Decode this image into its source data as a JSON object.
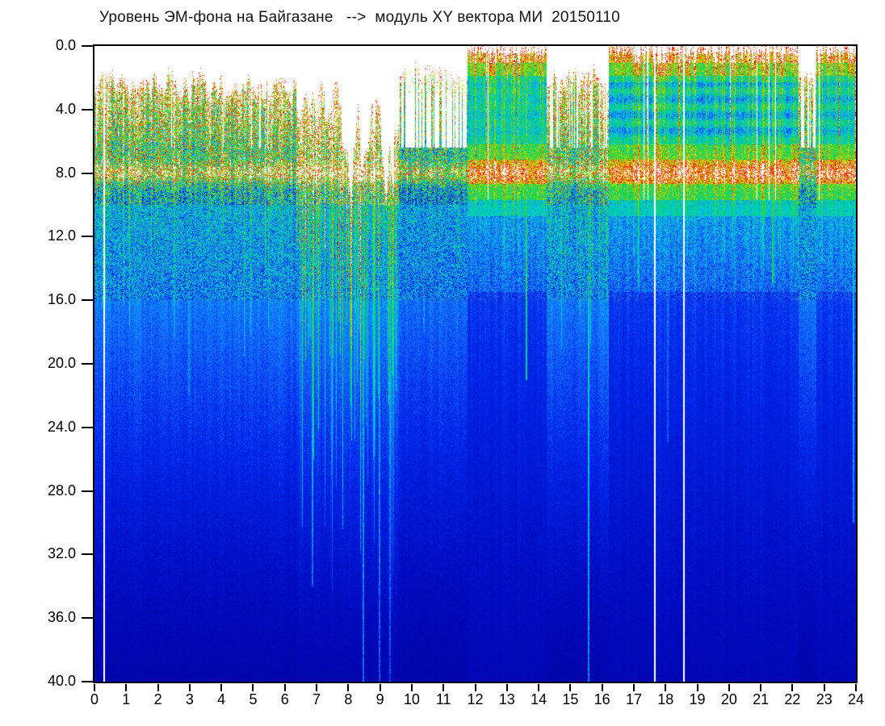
{
  "title": {
    "text": "Уровень ЭМ-фона на Байгазане   -->  модуль XY вектора МИ  20150110"
  },
  "chart_data": {
    "type": "heatmap",
    "title": "Уровень ЭМ-фона на Байгазане --> модуль XY вектора МИ 20150110",
    "date_label": "20150110",
    "x_axis": {
      "range": [
        0,
        24
      ],
      "unit": "hour",
      "tick_labels": [
        "0",
        "1",
        "2",
        "3",
        "4",
        "5",
        "6",
        "7",
        "8",
        "9",
        "10",
        "11",
        "12",
        "13",
        "14",
        "15",
        "16",
        "17",
        "18",
        "19",
        "20",
        "21",
        "22",
        "23",
        "24"
      ]
    },
    "y_axis": {
      "range": [
        0,
        40
      ],
      "inverted": true,
      "tick_labels": [
        "0.0",
        "4.0",
        "8.0",
        "12.0",
        "16.0",
        "20.0",
        "24.0",
        "28.0",
        "32.0",
        "36.0",
        "40.0"
      ]
    },
    "grid": false,
    "legend": null,
    "background_color": "#ffffff",
    "colormap": {
      "name": "jet-saturating-to-white",
      "stops": [
        [
          0.0,
          "#00008C"
        ],
        [
          0.18,
          "#000ABE"
        ],
        [
          0.3,
          "#0028EB"
        ],
        [
          0.4,
          "#146EFF"
        ],
        [
          0.5,
          "#00C8E6"
        ],
        [
          0.6,
          "#00D796"
        ],
        [
          0.7,
          "#28CD28"
        ],
        [
          0.8,
          "#B4DC00"
        ],
        [
          0.88,
          "#F0C800"
        ],
        [
          0.93,
          "#FF3C00"
        ],
        [
          1.0,
          "#EB0000"
        ],
        [
          1.02,
          "#FFFFFF"
        ]
      ]
    },
    "schumann_band": {
      "center_hz": 8.0,
      "sigma": 0.5,
      "strength": 0.3
    },
    "segments": [
      {
        "from": 0.0,
        "to": 6.35,
        "mode": "speckle",
        "act": 1.05,
        "clip": 1.7,
        "sparse": 0.14,
        "streak": 20,
        "band8": 0.95,
        "banded": 0
      },
      {
        "from": 6.35,
        "to": 9.6,
        "mode": "storm",
        "act": 1.5,
        "clip": 3.0,
        "sparse": 0.04,
        "streak": 40,
        "band8": 0.8,
        "banded": 0
      },
      {
        "from": 9.6,
        "to": 11.75,
        "mode": "sparse",
        "act": 0.85,
        "clip": 1.1,
        "sparse": 0.62,
        "streak": 12,
        "band8": 1.0,
        "banded": 0
      },
      {
        "from": 11.75,
        "to": 14.25,
        "mode": "block",
        "act": 1.0,
        "clip": 0.8,
        "sparse": 0.0,
        "streak": 14,
        "band8": 0.55,
        "banded": 0.35
      },
      {
        "from": 14.25,
        "to": 16.2,
        "mode": "speckle",
        "act": 1.15,
        "clip": 1.3,
        "sparse": 0.34,
        "streak": 22,
        "band8": 0.9,
        "banded": 0
      },
      {
        "from": 16.2,
        "to": 22.2,
        "mode": "block",
        "act": 1.0,
        "clip": 0.5,
        "sparse": 0.0,
        "streak": 16,
        "band8": 0.55,
        "banded": 1.0
      },
      {
        "from": 22.2,
        "to": 22.75,
        "mode": "sparse",
        "act": 0.9,
        "clip": 0.9,
        "sparse": 0.5,
        "streak": 10,
        "band8": 0.9,
        "banded": 0
      },
      {
        "from": 22.75,
        "to": 24.01,
        "mode": "block",
        "act": 1.05,
        "clip": 0.55,
        "sparse": 0.0,
        "streak": 14,
        "band8": 0.6,
        "banded": 0.7
      }
    ],
    "white_gap_lines_hours": [
      0.29,
      17.63,
      18.56
    ],
    "event_lines": [
      {
        "h": 0.05,
        "to": 16,
        "lvl": 0.55
      },
      {
        "h": 1.85,
        "to": 15,
        "lvl": 0.5
      },
      {
        "h": 2.95,
        "to": 22,
        "lvl": 0.55
      },
      {
        "h": 4.6,
        "to": 16,
        "lvl": 0.52
      },
      {
        "h": 6.85,
        "to": 34,
        "lvl": 0.6
      },
      {
        "h": 7.45,
        "to": 27,
        "lvl": 0.56
      },
      {
        "h": 8.45,
        "to": 40,
        "lvl": 0.62
      },
      {
        "h": 8.95,
        "to": 40,
        "lvl": 0.6
      },
      {
        "h": 9.3,
        "to": 40,
        "lvl": 0.58
      },
      {
        "h": 10.35,
        "to": 18,
        "lvl": 0.55
      },
      {
        "h": 11.45,
        "to": 14,
        "lvl": 0.6
      },
      {
        "h": 13.6,
        "to": 21,
        "lvl": 0.72
      },
      {
        "h": 15.55,
        "to": 40,
        "lvl": 0.66
      },
      {
        "h": 18.05,
        "to": 25,
        "lvl": 0.5
      },
      {
        "h": 21.35,
        "to": 15,
        "lvl": 0.7
      },
      {
        "h": 23.9,
        "to": 30,
        "lvl": 0.6
      },
      {
        "h": 23.97,
        "to": 9,
        "lvl": 1.0
      }
    ],
    "render_seed": 7
  }
}
